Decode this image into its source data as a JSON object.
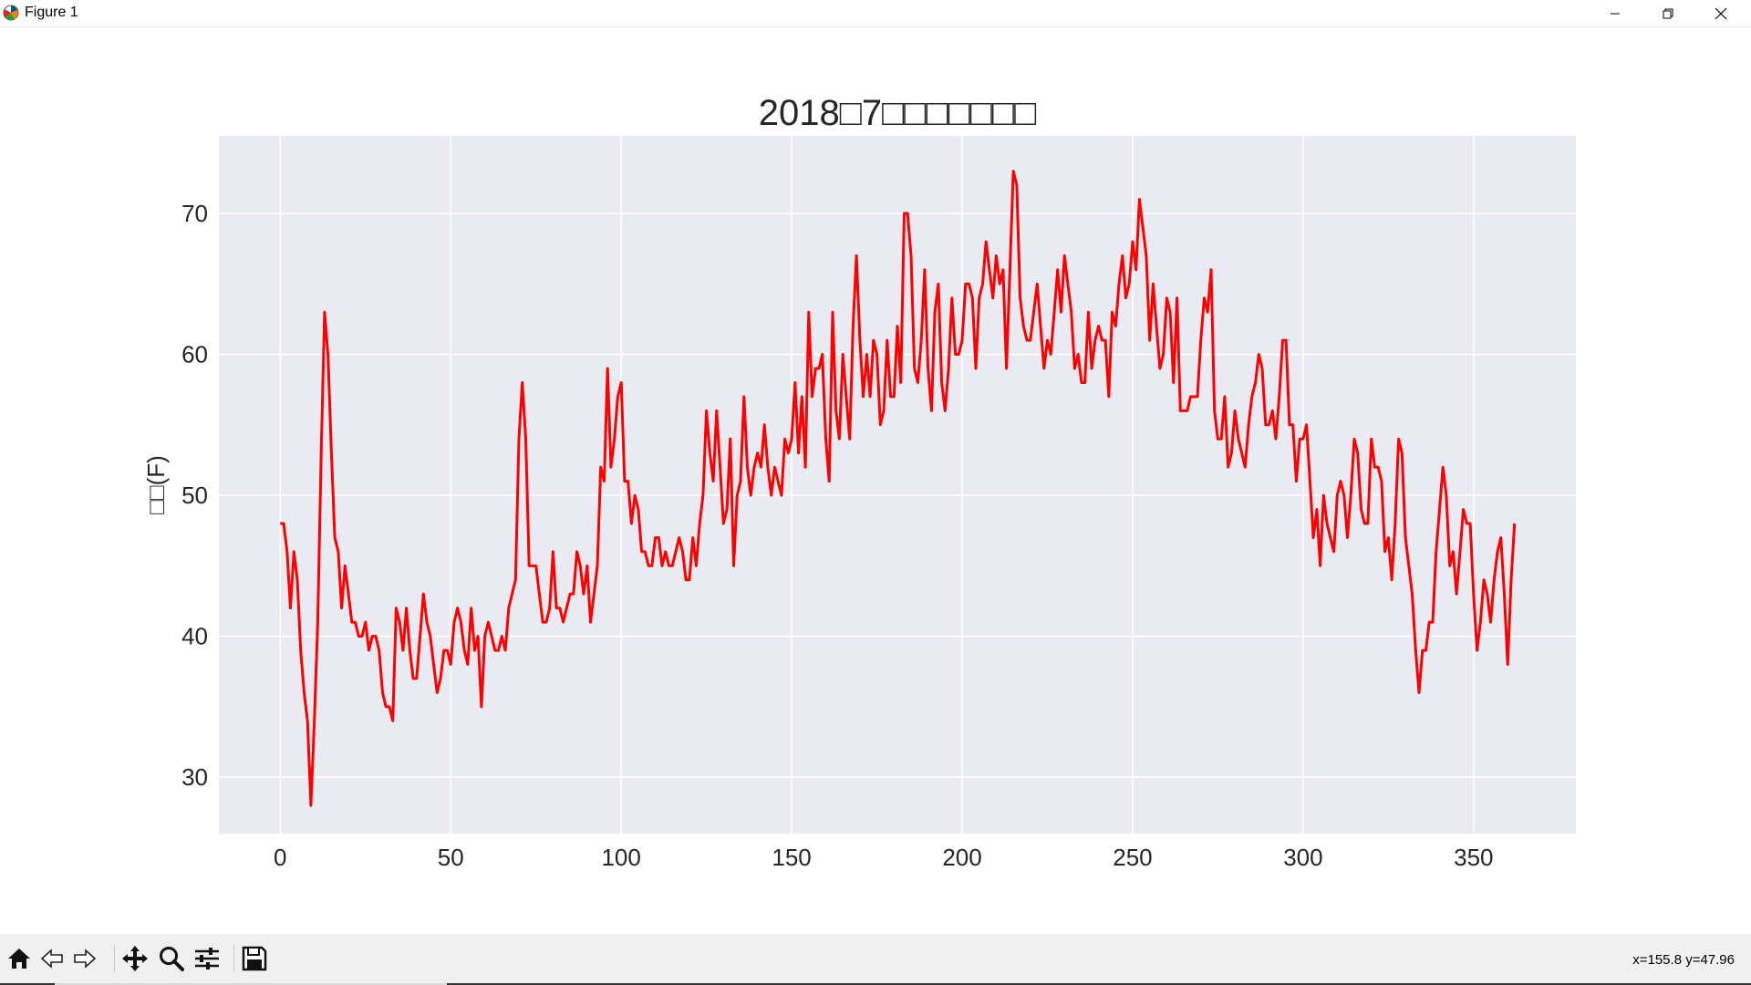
{
  "window": {
    "title": "Figure 1"
  },
  "toolbar": {
    "buttons": [
      {
        "name": "home-icon"
      },
      {
        "name": "back-icon"
      },
      {
        "name": "forward-icon"
      },
      {
        "name": "pan-icon"
      },
      {
        "name": "zoom-icon"
      },
      {
        "name": "configure-subplots-icon"
      },
      {
        "name": "save-icon"
      }
    ],
    "coords": "x=155.8 y=47.96"
  },
  "colors": {
    "line": "#ff0000",
    "plot_bg": "#eaeaf2",
    "grid": "#ffffff",
    "text": "#262626"
  },
  "chart_data": {
    "type": "line",
    "title": "2018□7□□□□□□□",
    "xlabel": "",
    "ylabel": "□□(F)",
    "xlim": [
      -18,
      380
    ],
    "ylim": [
      26,
      75.5
    ],
    "xticks": [
      0,
      50,
      100,
      150,
      200,
      250,
      300,
      350
    ],
    "yticks": [
      30,
      40,
      50,
      60,
      70
    ],
    "grid": true,
    "series": [
      {
        "color": "#ff0000",
        "x_start": 0,
        "x_step": 1,
        "values": [
          48,
          48,
          46,
          42,
          46,
          44,
          39,
          36,
          34,
          28,
          34,
          41,
          53,
          63,
          60,
          53,
          47,
          46,
          42,
          45,
          43,
          41,
          41,
          40,
          40,
          41,
          39,
          40,
          40,
          39,
          36,
          35,
          35,
          34,
          42,
          41,
          39,
          42,
          39,
          37,
          37,
          40,
          43,
          41,
          40,
          38,
          36,
          37,
          39,
          39,
          38,
          41,
          42,
          41,
          39,
          38,
          42,
          39,
          40,
          35,
          40,
          41,
          40,
          39,
          39,
          40,
          39,
          42,
          43,
          44,
          54,
          58,
          54,
          45,
          45,
          45,
          43,
          41,
          41,
          42,
          46,
          42,
          42,
          41,
          42,
          43,
          43,
          46,
          45,
          43,
          45,
          41,
          43,
          45,
          52,
          51,
          59,
          52,
          54,
          57,
          58,
          51,
          51,
          48,
          50,
          49,
          46,
          46,
          45,
          45,
          47,
          47,
          45,
          46,
          45,
          45,
          46,
          47,
          46,
          44,
          44,
          47,
          45,
          48,
          50,
          56,
          53,
          51,
          56,
          52,
          48,
          49,
          54,
          45,
          50,
          51,
          57,
          52,
          50,
          52,
          53,
          52,
          55,
          52,
          50,
          52,
          51,
          50,
          54,
          53,
          54,
          58,
          53,
          57,
          52,
          63,
          57,
          59,
          59,
          60,
          54,
          51,
          63,
          56,
          54,
          60,
          57,
          54,
          62,
          67,
          61,
          57,
          60,
          57,
          61,
          60,
          55,
          56,
          61,
          57,
          57,
          62,
          58,
          70,
          70,
          67,
          59,
          58,
          61,
          66,
          59,
          56,
          63,
          65,
          58,
          56,
          59,
          64,
          60,
          60,
          61,
          65,
          65,
          64,
          59,
          64,
          65,
          68,
          66,
          64,
          67,
          65,
          66,
          59,
          66,
          73,
          72,
          64,
          62,
          61,
          61,
          63,
          65,
          62,
          59,
          61,
          60,
          63,
          66,
          63,
          67,
          65,
          63,
          59,
          60,
          58,
          58,
          63,
          59,
          61,
          62,
          61,
          61,
          57,
          63,
          62,
          65,
          67,
          64,
          65,
          68,
          66,
          71,
          69,
          67,
          61,
          65,
          62,
          59,
          60,
          64,
          63,
          58,
          64,
          56,
          56,
          56,
          57,
          57,
          57,
          61,
          64,
          63,
          66,
          56,
          54,
          54,
          57,
          52,
          53,
          56,
          54,
          53,
          52,
          55,
          57,
          58,
          60,
          59,
          55,
          55,
          56,
          54,
          57,
          61,
          61,
          55,
          55,
          51,
          54,
          54,
          55,
          51,
          47,
          49,
          45,
          50,
          48,
          47,
          46,
          50,
          51,
          50,
          47,
          50,
          54,
          53,
          49,
          48,
          48,
          54,
          52,
          52,
          51,
          46,
          47,
          44,
          48,
          54,
          53,
          47,
          45,
          43,
          39,
          36,
          39,
          39,
          41,
          41,
          46,
          49,
          52,
          50,
          45,
          46,
          43,
          46,
          49,
          48,
          48,
          43,
          39,
          41,
          44,
          43,
          41,
          44,
          46,
          47,
          43,
          38,
          44,
          48
        ]
      }
    ]
  }
}
